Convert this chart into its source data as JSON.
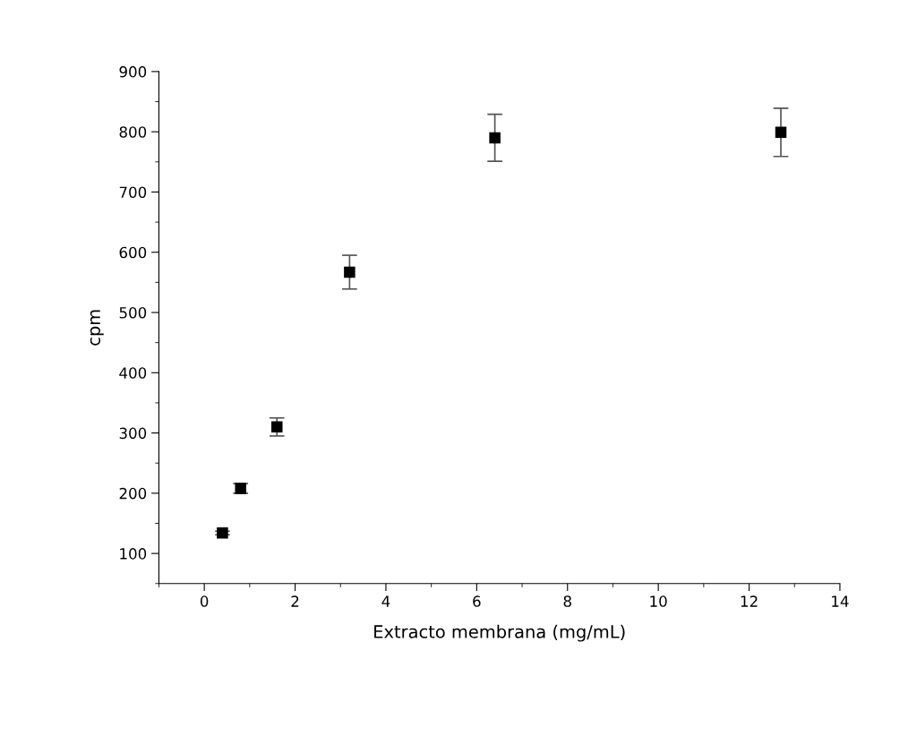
{
  "chart_data": {
    "type": "scatter",
    "xlabel": "Extracto membrana (mg/mL)",
    "ylabel": "cpm",
    "x": [
      0.4,
      0.8,
      1.6,
      3.2,
      6.4,
      12.7
    ],
    "series": [
      {
        "color": "#000000",
        "values": [
          134,
          208,
          310,
          567,
          790,
          799
        ],
        "errors": [
          3,
          8,
          15,
          28,
          39,
          40
        ]
      }
    ],
    "xlim": [
      -1,
      14
    ],
    "xticks": [
      0,
      2,
      4,
      6,
      8,
      10,
      12,
      14
    ],
    "ylim": [
      50,
      900
    ],
    "yticks": [
      100,
      200,
      300,
      400,
      500,
      600,
      700,
      800,
      900
    ],
    "marker": "square",
    "grid": false
  }
}
